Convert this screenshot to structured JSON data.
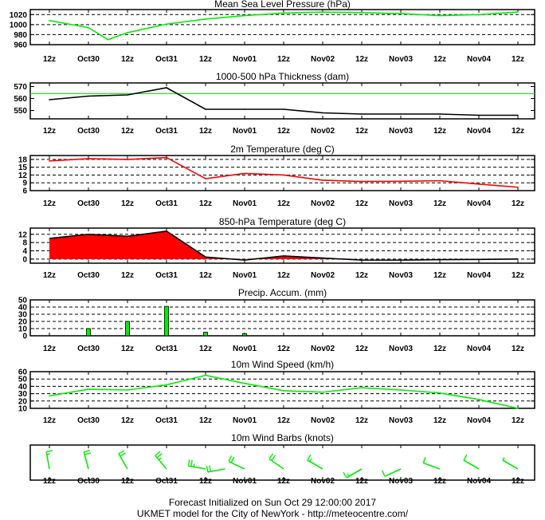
{
  "x_labels": [
    "12z",
    "Oct30",
    "12z",
    "Oct31",
    "12z",
    "Nov01",
    "12z",
    "Nov02",
    "12z",
    "Nov03",
    "12z",
    "Nov04",
    "12z"
  ],
  "footer": {
    "line1": "Forecast Initialized on Sun Oct 29 12:00:00 2017",
    "line2": "UKMET model for the City of NewYork - http://meteocentre.com/"
  },
  "colors": {
    "green": "#00ee00",
    "black": "#000000",
    "red": "#ff0000",
    "grid": "#000000"
  },
  "chart_data": [
    {
      "type": "line",
      "title": "Mean Sea Level Pressure (hPa)",
      "ylim": [
        960,
        1030
      ],
      "yticks": [
        960,
        980,
        1000,
        1020
      ],
      "grid": true,
      "series": [
        {
          "color": "#00ee00",
          "x": [
            0,
            1,
            1.5,
            2,
            3,
            4,
            5,
            6,
            7,
            8,
            9,
            10,
            11,
            12
          ],
          "values": [
            1008,
            994,
            970,
            984,
            1001,
            1011,
            1018,
            1023,
            1025,
            1024,
            1022,
            1018,
            1020,
            1025
          ]
        }
      ]
    },
    {
      "type": "line",
      "title": "1000-500 hPa Thickness (dam)",
      "ylim": [
        543,
        573
      ],
      "yticks": [
        550,
        560,
        570
      ],
      "grid": false,
      "reference_line": 564,
      "series": [
        {
          "color": "#000000",
          "x": [
            0,
            1,
            2,
            3,
            4,
            5,
            6,
            7,
            8,
            9,
            10,
            11,
            12
          ],
          "values": [
            559,
            562,
            563,
            569,
            551,
            551,
            551,
            548,
            547,
            547,
            547,
            546,
            546
          ]
        }
      ]
    },
    {
      "type": "line",
      "title": "2m Temperature (deg C)",
      "ylim": [
        6,
        19.5
      ],
      "yticks": [
        6,
        9,
        12,
        15,
        18
      ],
      "grid": true,
      "series": [
        {
          "color": "#ff0000",
          "x": [
            0,
            1,
            2,
            3,
            4,
            5,
            6,
            7,
            8,
            9,
            10,
            11,
            12
          ],
          "values": [
            17.4,
            18.3,
            18.0,
            18.7,
            10.6,
            12.6,
            12.0,
            10.0,
            9.5,
            9.6,
            9.8,
            8.5,
            7.3
          ]
        }
      ]
    },
    {
      "type": "area",
      "title": "850-hPa Temperature (deg C)",
      "ylim": [
        -2,
        15
      ],
      "yticks": [
        0,
        4,
        8,
        12
      ],
      "grid": true,
      "series": [
        {
          "color": "#ff0000",
          "x": [
            0,
            1,
            2,
            3,
            4,
            5,
            6,
            7,
            8,
            9,
            10,
            11,
            12
          ],
          "values": [
            10,
            12,
            11,
            13.5,
            1,
            -0.5,
            1.5,
            0.5,
            -0.5,
            -0.5,
            -0.3,
            -0.2,
            0
          ]
        }
      ]
    },
    {
      "type": "bar",
      "title": "Precip. Accum. (mm)",
      "ylim": [
        0,
        50
      ],
      "yticks": [
        0,
        10,
        20,
        30,
        40,
        50
      ],
      "grid": true,
      "series": [
        {
          "color": "#00ee00",
          "x": [
            1,
            2,
            3,
            4,
            5
          ],
          "values": [
            10,
            20,
            41,
            5,
            3
          ]
        }
      ]
    },
    {
      "type": "line",
      "title": "10m Wind Speed (km/h)",
      "ylim": [
        10,
        60
      ],
      "yticks": [
        10,
        20,
        30,
        40,
        50,
        60
      ],
      "grid": true,
      "series": [
        {
          "color": "#00ee00",
          "x": [
            0,
            1,
            2,
            3,
            4,
            5,
            6,
            7,
            8,
            9,
            10,
            11,
            12
          ],
          "values": [
            27,
            36,
            35,
            42,
            55,
            44,
            34,
            32,
            38,
            35,
            31,
            22,
            10
          ]
        }
      ]
    },
    {
      "type": "wind_barbs",
      "title": "10m Wind Barbs  (knots)",
      "grid": false,
      "series": [
        {
          "color": "#00ee00",
          "x": [
            0,
            1,
            2,
            3,
            4,
            4.5,
            5,
            6,
            7,
            8,
            9,
            10,
            11,
            12
          ],
          "direction_deg": [
            350,
            345,
            330,
            320,
            280,
            260,
            295,
            305,
            300,
            240,
            245,
            290,
            300,
            300
          ],
          "speed_kt": [
            15,
            20,
            20,
            25,
            25,
            20,
            20,
            20,
            15,
            15,
            10,
            10,
            10,
            5
          ]
        }
      ]
    }
  ]
}
